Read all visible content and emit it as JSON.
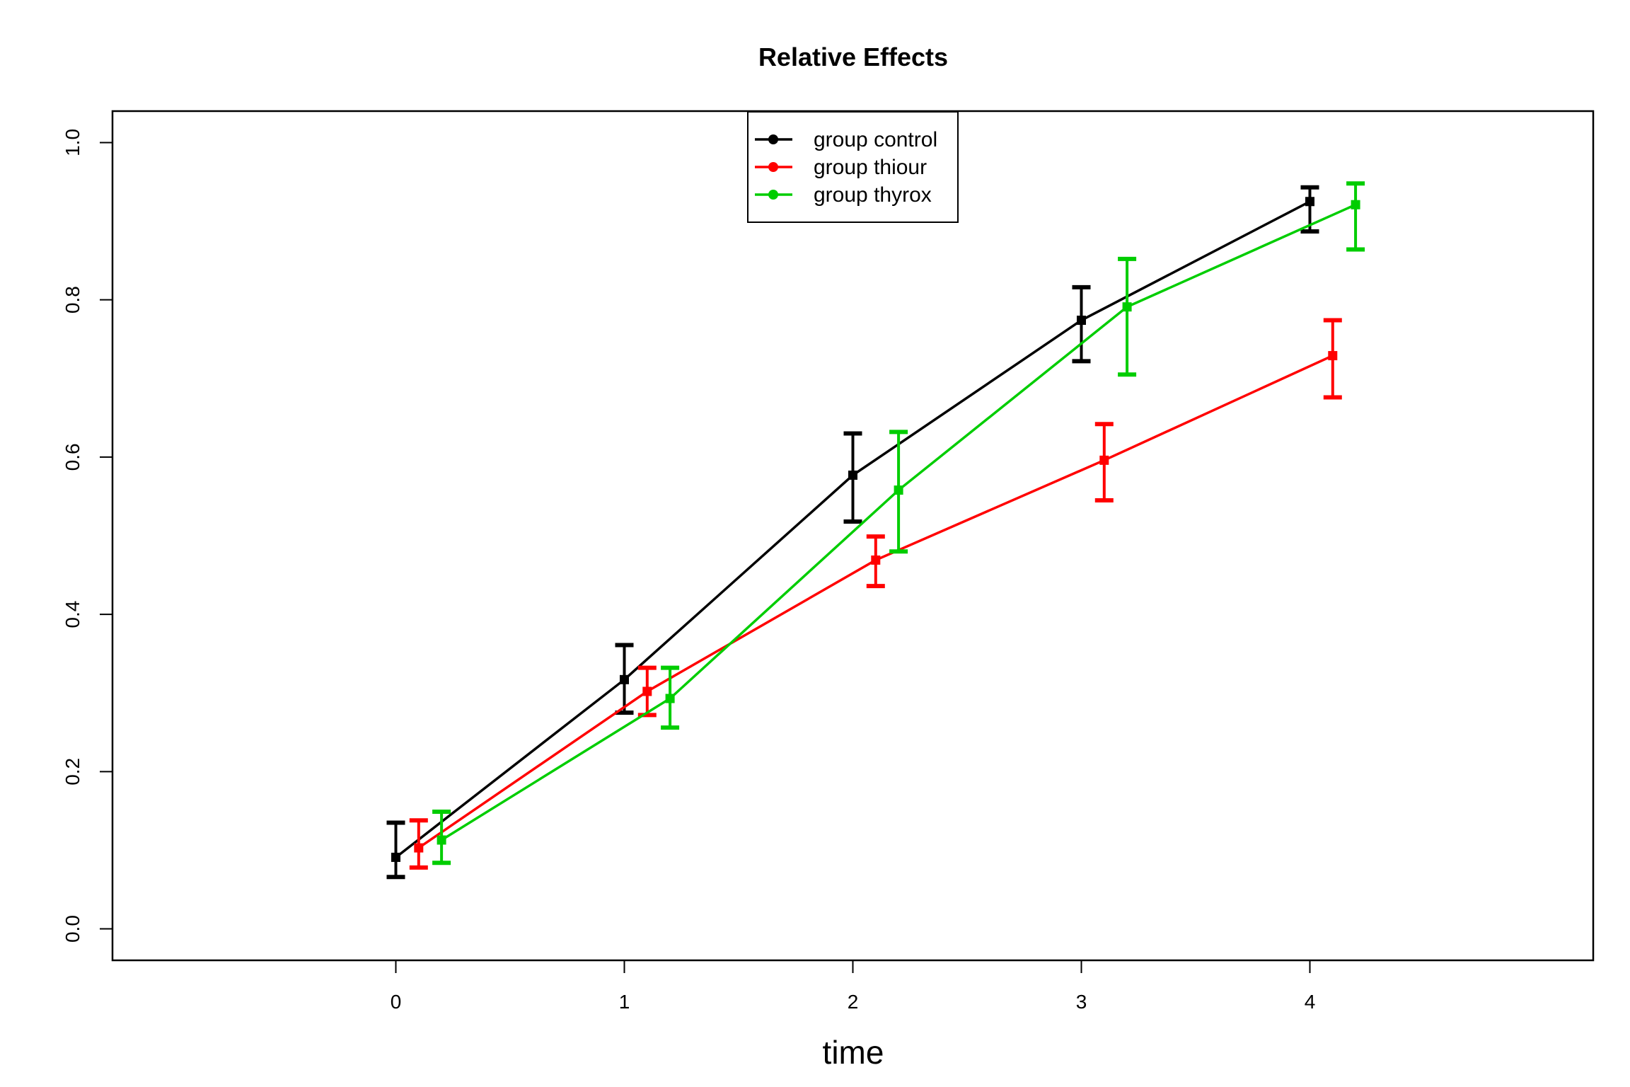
{
  "chart_data": {
    "type": "line",
    "title": "Relative Effects",
    "xlabel": "time",
    "ylabel": "",
    "x_ticks": [
      "0",
      "1",
      "2",
      "3",
      "4"
    ],
    "y_ticks": [
      "0.0",
      "0.2",
      "0.4",
      "0.6",
      "0.8",
      "1.0"
    ],
    "xlim": [
      -1.24,
      5.24
    ],
    "ylim": [
      -0.04,
      1.04
    ],
    "grid": false,
    "legend_position": "top",
    "series": [
      {
        "name": "group control",
        "color": "#000000",
        "x": [
          0,
          1,
          2,
          3,
          4
        ],
        "values": [
          0.091,
          0.317,
          0.577,
          0.774,
          0.925
        ],
        "lower": [
          0.066,
          0.275,
          0.518,
          0.722,
          0.887
        ],
        "upper": [
          0.135,
          0.361,
          0.63,
          0.816,
          0.943
        ]
      },
      {
        "name": "group thiour",
        "color": "#ff0000",
        "x": [
          0.1,
          1.1,
          2.1,
          3.1,
          4.1
        ],
        "values": [
          0.103,
          0.302,
          0.469,
          0.596,
          0.729
        ],
        "lower": [
          0.078,
          0.272,
          0.436,
          0.545,
          0.676
        ],
        "upper": [
          0.138,
          0.332,
          0.499,
          0.642,
          0.774
        ]
      },
      {
        "name": "group thyrox",
        "color": "#00cd00",
        "x": [
          0.2,
          1.2,
          2.2,
          3.2,
          4.2
        ],
        "values": [
          0.113,
          0.293,
          0.558,
          0.791,
          0.921
        ],
        "lower": [
          0.084,
          0.256,
          0.48,
          0.705,
          0.864
        ],
        "upper": [
          0.149,
          0.332,
          0.632,
          0.852,
          0.948
        ]
      }
    ]
  }
}
